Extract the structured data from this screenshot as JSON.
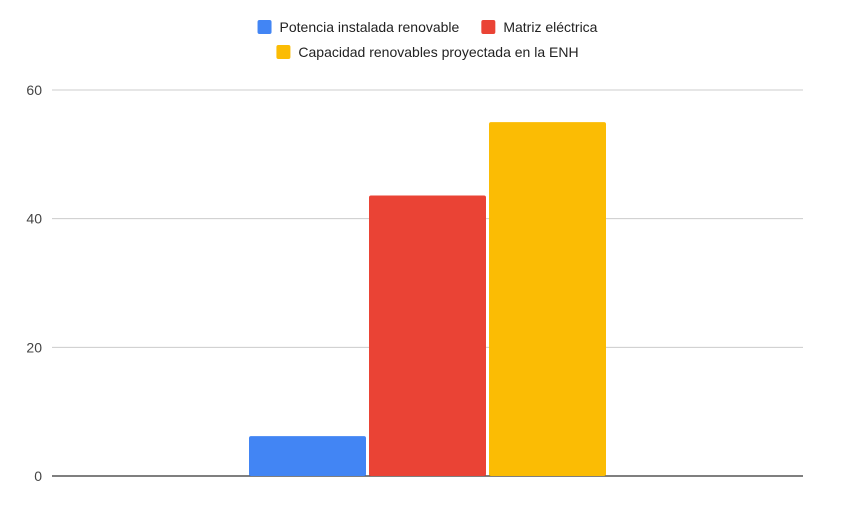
{
  "chart_data": {
    "type": "bar",
    "title": "",
    "xlabel": "",
    "ylabel": "",
    "categories": [
      ""
    ],
    "series": [
      {
        "name": "Potencia instalada renovable",
        "color": "#4285F4",
        "values": [
          6.2
        ]
      },
      {
        "name": "Matriz eléctrica",
        "color": "#EA4335",
        "values": [
          43.6
        ]
      },
      {
        "name": "Capacidad renovables proyectada en la ENH",
        "color": "#FBBC04",
        "values": [
          55
        ]
      }
    ],
    "ylim": [
      0,
      60
    ],
    "yticks": [
      0,
      20,
      40,
      60
    ],
    "ytick_labels": [
      "0",
      "20",
      "40",
      "60"
    ],
    "grid": true,
    "legend_position": "top"
  }
}
